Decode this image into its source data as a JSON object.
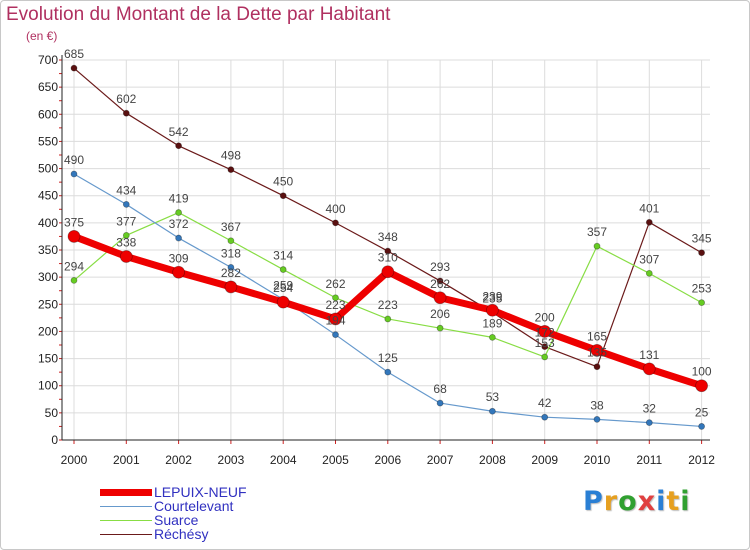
{
  "colors": {
    "title": "#b03060",
    "axis": "#222222",
    "grid": "#dcdcdc",
    "tick_red": "#cc2222",
    "label": "#444444",
    "legend_text": "#3030c0"
  },
  "legend": {
    "items": [
      {
        "label": "LEPUIX-NEUF"
      },
      {
        "label": "Courtelevant"
      },
      {
        "label": "Suarce"
      },
      {
        "label": "Réchésy"
      }
    ]
  },
  "logo": {
    "letters": [
      {
        "ch": "P",
        "color": "#2a7fd4"
      },
      {
        "ch": "r",
        "color": "#e6a020"
      },
      {
        "ch": "o",
        "color": "#30a030"
      },
      {
        "ch": "x",
        "color": "#e04040"
      },
      {
        "ch": "i",
        "color": "#2a7fd4"
      },
      {
        "ch": "t",
        "color": "#e6a020"
      },
      {
        "ch": "i",
        "color": "#30a030"
      }
    ]
  },
  "chart_data": {
    "type": "line",
    "title": "Evolution du Montant de la Dette par Habitant",
    "ylabel": "(en €)",
    "xlabel": "",
    "x": [
      "2000",
      "2001",
      "2002",
      "2003",
      "2004",
      "2005",
      "2006",
      "2007",
      "2008",
      "2009",
      "2010",
      "2011",
      "2012"
    ],
    "ylim": [
      0,
      700
    ],
    "yticks": [
      0,
      50,
      100,
      150,
      200,
      250,
      300,
      350,
      400,
      450,
      500,
      550,
      600,
      650,
      700
    ],
    "grid": true,
    "legend_position": "bottom-left",
    "series": [
      {
        "name": "Réchésy",
        "color": "#6b1a1a",
        "dot": "#5a1010",
        "width": 1.2,
        "r": 3,
        "values": [
          685,
          602,
          542,
          498,
          450,
          400,
          348,
          293,
          235,
          172,
          135,
          401,
          345
        ],
        "labels": [
          "685",
          "602",
          "542",
          "498",
          "450",
          "400",
          "348",
          "293",
          "235",
          "172",
          "135",
          "401",
          "345"
        ]
      },
      {
        "name": "Suarce",
        "color": "#88dd44",
        "dot": "#66cc22",
        "width": 1.2,
        "r": 3,
        "values": [
          294,
          377,
          419,
          367,
          314,
          262,
          223,
          206,
          189,
          153,
          357,
          307,
          253
        ],
        "labels": [
          "294",
          "377",
          "419",
          "367",
          "314",
          "262",
          "223",
          "206",
          "189",
          "153",
          "357",
          "307",
          "253"
        ]
      },
      {
        "name": "Courtelevant",
        "color": "#6699cc",
        "dot": "#3377bb",
        "width": 1.2,
        "r": 3,
        "values": [
          490,
          434,
          372,
          318,
          259,
          194,
          125,
          68,
          53,
          42,
          38,
          32,
          25
        ],
        "labels": [
          "490",
          "434",
          "372",
          "318",
          "259",
          "194",
          "125",
          "68",
          "53",
          "42",
          "38",
          "32",
          "25"
        ]
      },
      {
        "name": "LEPUIX-NEUF",
        "color": "#ee0000",
        "dot": "#ee0000",
        "width": 7,
        "r": 6,
        "values": [
          375,
          338,
          309,
          282,
          254,
          223,
          310,
          262,
          239,
          200,
          165,
          131,
          100
        ],
        "labels": [
          "375",
          "338",
          "309",
          "282",
          "254",
          "223",
          "310",
          "262",
          "239",
          "200",
          "165",
          "131",
          "100"
        ]
      }
    ]
  }
}
